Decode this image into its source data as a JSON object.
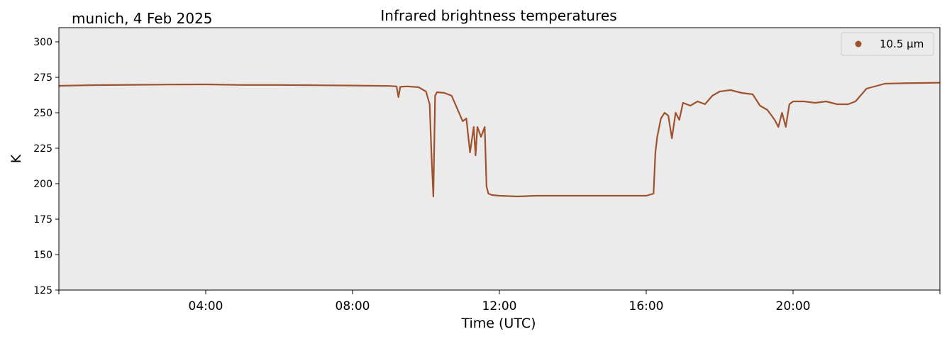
{
  "location_label": "munich, 4 Feb 2025",
  "chart_data": {
    "type": "line",
    "title": "Infrared brightness temperatures",
    "xlabel": "Time (UTC)",
    "ylabel": "K",
    "xlim_hours": [
      0,
      24
    ],
    "ylim": [
      125,
      310
    ],
    "xticks": [
      {
        "hour": 4,
        "label": "04:00"
      },
      {
        "hour": 8,
        "label": "08:00"
      },
      {
        "hour": 12,
        "label": "12:00"
      },
      {
        "hour": 16,
        "label": "16:00"
      },
      {
        "hour": 20,
        "label": "20:00"
      }
    ],
    "yticks": [
      125,
      150,
      175,
      200,
      225,
      250,
      275,
      300
    ],
    "grid": false,
    "background": "#ebebeb",
    "legend": {
      "position": "top-right"
    },
    "series": [
      {
        "name": "10.5 µm",
        "color": "#a0522d",
        "x_hours": [
          0,
          1,
          2,
          3,
          4,
          5,
          6,
          7,
          8,
          9.0,
          9.2,
          9.25,
          9.3,
          9.5,
          9.8,
          10.0,
          10.1,
          10.15,
          10.2,
          10.25,
          10.3,
          10.5,
          10.7,
          10.9,
          11.0,
          11.1,
          11.2,
          11.3,
          11.35,
          11.4,
          11.5,
          11.6,
          11.65,
          11.7,
          11.8,
          12.0,
          12.5,
          13.0,
          14.0,
          15.0,
          16.0,
          16.2,
          16.25,
          16.3,
          16.4,
          16.5,
          16.6,
          16.7,
          16.8,
          16.9,
          17.0,
          17.2,
          17.4,
          17.6,
          17.8,
          18.0,
          18.3,
          18.6,
          18.9,
          19.1,
          19.3,
          19.5,
          19.6,
          19.7,
          19.8,
          19.9,
          20.0,
          20.3,
          20.6,
          20.9,
          21.2,
          21.5,
          21.7,
          22.0,
          22.5,
          23.0,
          24.0
        ],
        "values": [
          269,
          269.5,
          269.7,
          269.9,
          270,
          269.6,
          269.6,
          269.4,
          269.2,
          268.9,
          268.6,
          261,
          268.3,
          268.6,
          268,
          265,
          256,
          220,
          191,
          262,
          264.5,
          264,
          262,
          250,
          244,
          246,
          222,
          240,
          220,
          240,
          233,
          240,
          198,
          193,
          192,
          191.5,
          191,
          191.5,
          191.5,
          191.5,
          191.5,
          193,
          222,
          233,
          246,
          250,
          248,
          232,
          250,
          245,
          257,
          255,
          258,
          256,
          262,
          265,
          266,
          264,
          263,
          255,
          252,
          245,
          240,
          250,
          240,
          256,
          258,
          258,
          257,
          258,
          256,
          256,
          258,
          267,
          270.5,
          270.8,
          271.2
        ]
      }
    ]
  }
}
